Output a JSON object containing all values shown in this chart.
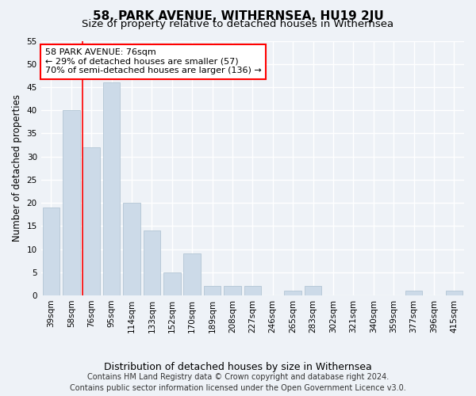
{
  "title": "58, PARK AVENUE, WITHERNSEA, HU19 2JU",
  "subtitle": "Size of property relative to detached houses in Withernsea",
  "xlabel": "Distribution of detached houses by size in Withernsea",
  "ylabel": "Number of detached properties",
  "categories": [
    "39sqm",
    "58sqm",
    "76sqm",
    "95sqm",
    "114sqm",
    "133sqm",
    "152sqm",
    "170sqm",
    "189sqm",
    "208sqm",
    "227sqm",
    "246sqm",
    "265sqm",
    "283sqm",
    "302sqm",
    "321sqm",
    "340sqm",
    "359sqm",
    "377sqm",
    "396sqm",
    "415sqm"
  ],
  "values": [
    19,
    40,
    32,
    46,
    20,
    14,
    5,
    9,
    2,
    2,
    2,
    0,
    1,
    2,
    0,
    0,
    0,
    0,
    1,
    0,
    1
  ],
  "bar_color": "#ccdae8",
  "bar_edgecolor": "#aabfcf",
  "red_line_index": 2,
  "ylim": [
    0,
    55
  ],
  "yticks": [
    0,
    5,
    10,
    15,
    20,
    25,
    30,
    35,
    40,
    45,
    50,
    55
  ],
  "annotation_line1": "58 PARK AVENUE: 76sqm",
  "annotation_line2": "← 29% of detached houses are smaller (57)",
  "annotation_line3": "70% of semi-detached houses are larger (136) →",
  "annotation_box_color": "white",
  "annotation_box_edgecolor": "red",
  "footer_line1": "Contains HM Land Registry data © Crown copyright and database right 2024.",
  "footer_line2": "Contains public sector information licensed under the Open Government Licence v3.0.",
  "bg_color": "#eef2f7",
  "grid_color": "white",
  "title_fontsize": 11,
  "subtitle_fontsize": 9.5,
  "ylabel_fontsize": 8.5,
  "xlabel_fontsize": 9,
  "tick_fontsize": 7.5,
  "annotation_fontsize": 8,
  "footer_fontsize": 7
}
